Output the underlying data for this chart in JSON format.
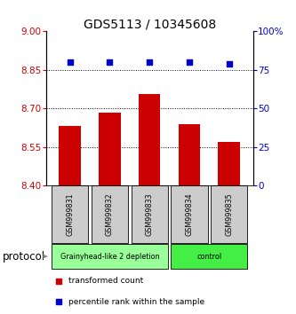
{
  "title": "GDS5113 / 10345608",
  "samples": [
    "GSM999831",
    "GSM999832",
    "GSM999833",
    "GSM999834",
    "GSM999835"
  ],
  "bar_values": [
    8.63,
    8.685,
    8.755,
    8.638,
    8.568
  ],
  "percentile_values": [
    80,
    80,
    80,
    80,
    79
  ],
  "bar_color": "#cc0000",
  "dot_color": "#0000cc",
  "ylim_left": [
    8.4,
    9.0
  ],
  "ylim_right": [
    0,
    100
  ],
  "yticks_left": [
    8.4,
    8.55,
    8.7,
    8.85,
    9.0
  ],
  "yticks_right": [
    0,
    25,
    50,
    75,
    100
  ],
  "ytick_labels_right": [
    "0",
    "25",
    "50",
    "75",
    "100%"
  ],
  "grid_lines": [
    8.55,
    8.7,
    8.85
  ],
  "groups": [
    {
      "label": "Grainyhead-like 2 depletion",
      "samples": [
        0,
        1,
        2
      ],
      "color": "#99ff99"
    },
    {
      "label": "control",
      "samples": [
        3,
        4
      ],
      "color": "#44ee44"
    }
  ],
  "protocol_label": "protocol",
  "legend_items": [
    {
      "color": "#cc0000",
      "label": "transformed count"
    },
    {
      "color": "#0000cc",
      "label": "percentile rank within the sample"
    }
  ],
  "bar_width": 0.55,
  "background_color": "#ffffff",
  "sample_box_color": "#cccccc",
  "title_fontsize": 10,
  "axis_fontsize": 7.5
}
